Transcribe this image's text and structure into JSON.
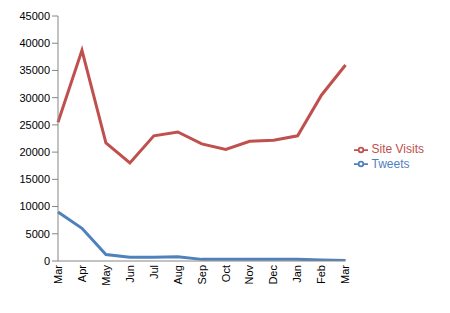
{
  "chart_data": {
    "type": "line",
    "categories": [
      "Mar",
      "Apr",
      "May",
      "Jun",
      "Jul",
      "Aug",
      "Sep",
      "Oct",
      "Nov",
      "Dec",
      "Jan",
      "Feb",
      "Mar"
    ],
    "series": [
      {
        "name": "Site Visits",
        "color": "#c0504d",
        "values": [
          25500,
          38700,
          21700,
          18000,
          23000,
          23700,
          21500,
          20500,
          22000,
          22200,
          23000,
          30500,
          36000
        ]
      },
      {
        "name": "Tweets",
        "color": "#4f81bd",
        "values": [
          9000,
          6000,
          1200,
          700,
          700,
          800,
          300,
          300,
          300,
          300,
          300,
          200,
          100
        ]
      }
    ],
    "ylim": [
      0,
      45000
    ],
    "yticks": [
      0,
      5000,
      10000,
      15000,
      20000,
      25000,
      30000,
      35000,
      40000,
      45000
    ],
    "grid": false,
    "legend": "right"
  }
}
